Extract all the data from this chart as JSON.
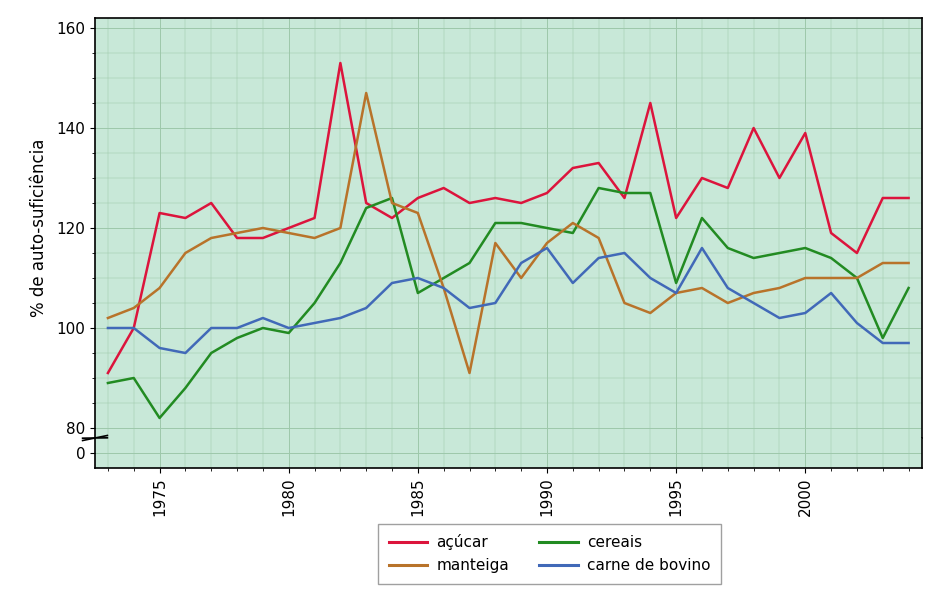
{
  "years": [
    1973,
    1974,
    1975,
    1976,
    1977,
    1978,
    1979,
    1980,
    1981,
    1982,
    1983,
    1984,
    1985,
    1986,
    1987,
    1988,
    1989,
    1990,
    1991,
    1992,
    1993,
    1994,
    1995,
    1996,
    1997,
    1998,
    1999,
    2000,
    2001,
    2002,
    2003,
    2004
  ],
  "acucar": [
    91,
    100,
    123,
    122,
    125,
    118,
    118,
    120,
    122,
    153,
    125,
    122,
    126,
    128,
    125,
    126,
    125,
    127,
    132,
    133,
    126,
    145,
    122,
    130,
    128,
    140,
    130,
    139,
    119,
    115,
    126,
    126
  ],
  "cereais": [
    89,
    90,
    82,
    88,
    95,
    98,
    100,
    99,
    105,
    113,
    124,
    126,
    107,
    110,
    113,
    121,
    121,
    120,
    119,
    128,
    127,
    127,
    109,
    122,
    116,
    114,
    115,
    116,
    114,
    110,
    98,
    108
  ],
  "manteiga": [
    102,
    104,
    108,
    115,
    118,
    119,
    120,
    119,
    118,
    120,
    147,
    125,
    123,
    108,
    91,
    117,
    110,
    117,
    121,
    118,
    105,
    103,
    107,
    108,
    105,
    107,
    108,
    110,
    110,
    110,
    113,
    113
  ],
  "carne_bovino": [
    100,
    100,
    96,
    95,
    100,
    100,
    102,
    100,
    101,
    102,
    104,
    109,
    110,
    108,
    104,
    105,
    113,
    116,
    109,
    114,
    115,
    110,
    107,
    116,
    108,
    105,
    102,
    103,
    107,
    101,
    97,
    97
  ],
  "acucar_color": "#dc143c",
  "cereais_color": "#228B22",
  "manteiga_color": "#b8732a",
  "carne_bovino_color": "#4169b8",
  "outer_bg": "#ffffff",
  "plot_bg_color": "#c8e8d8",
  "ylabel": "% de auto-suficiência",
  "legend_acucar": "açúcar",
  "legend_cereais": "cereais",
  "legend_manteiga": "manteiga",
  "legend_carne": "carne de bovino",
  "linewidth": 1.8,
  "grid_color": "#9dc8aa",
  "spine_color": "#000000"
}
